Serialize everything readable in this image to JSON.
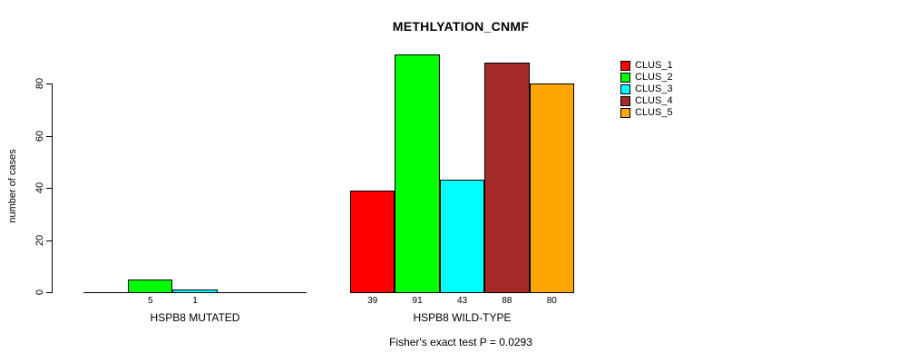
{
  "chart_data": {
    "type": "bar",
    "title": "METHLYATION_CNMF",
    "ylabel": "number of cases",
    "xlabel": "",
    "ylim": [
      0,
      92
    ],
    "yticks": [
      0,
      20,
      40,
      60,
      80
    ],
    "grid": false,
    "legend_position": "top-right",
    "categories": [
      "HSPB8 MUTATED",
      "HSPB8 WILD-TYPE"
    ],
    "series": [
      {
        "name": "CLUS_1",
        "color": "#FF0000",
        "values": [
          0,
          39
        ]
      },
      {
        "name": "CLUS_2",
        "color": "#00FF00",
        "values": [
          5,
          91
        ]
      },
      {
        "name": "CLUS_3",
        "color": "#00FFFF",
        "values": [
          1,
          43
        ]
      },
      {
        "name": "CLUS_4",
        "color": "#A52A2A",
        "values": [
          0,
          88
        ]
      },
      {
        "name": "CLUS_5",
        "color": "#FFA500",
        "values": [
          0,
          80
        ]
      }
    ],
    "bar_value_labels_shown": true,
    "zero_value_labels_hidden": true,
    "annotation": "Fisher's exact test P = 0.0293"
  }
}
